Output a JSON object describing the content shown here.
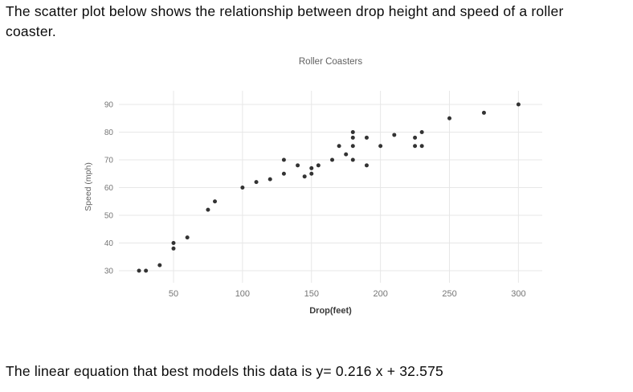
{
  "intro_text": "The scatter plot below shows the relationship between drop height and speed of a roller coaster.",
  "equation_text": "The linear equation that best models this data is y= 0.216 x + 32.575",
  "chart_data": {
    "type": "scatter",
    "title": "Roller Coasters",
    "xlabel": "Drop(feet)",
    "ylabel": "Speed (mph)",
    "x_ticks": [
      50,
      100,
      150,
      200,
      250,
      300
    ],
    "y_ticks": [
      30,
      40,
      50,
      60,
      70,
      80,
      90
    ],
    "xlim": [
      10,
      317
    ],
    "ylim": [
      26,
      94
    ],
    "grid": true,
    "legend": false,
    "points": [
      [
        25,
        30
      ],
      [
        30,
        30
      ],
      [
        40,
        32
      ],
      [
        50,
        38
      ],
      [
        50,
        40
      ],
      [
        60,
        42
      ],
      [
        75,
        52
      ],
      [
        80,
        55
      ],
      [
        100,
        60
      ],
      [
        110,
        62
      ],
      [
        120,
        63
      ],
      [
        130,
        65
      ],
      [
        130,
        70
      ],
      [
        140,
        68
      ],
      [
        145,
        64
      ],
      [
        150,
        65
      ],
      [
        150,
        67
      ],
      [
        155,
        68
      ],
      [
        165,
        70
      ],
      [
        170,
        75
      ],
      [
        175,
        72
      ],
      [
        180,
        70
      ],
      [
        180,
        75
      ],
      [
        180,
        78
      ],
      [
        180,
        80
      ],
      [
        190,
        68
      ],
      [
        190,
        78
      ],
      [
        200,
        75
      ],
      [
        210,
        79
      ],
      [
        225,
        75
      ],
      [
        225,
        78
      ],
      [
        230,
        75
      ],
      [
        230,
        80
      ],
      [
        250,
        85
      ],
      [
        275,
        87
      ],
      [
        300,
        90
      ]
    ],
    "colors": {
      "point": "#333333",
      "grid": "#e7e7e7",
      "title": "#616161",
      "tick": "#757575",
      "xlabel": "#3a3a3a",
      "ylabel": "#616161"
    }
  }
}
